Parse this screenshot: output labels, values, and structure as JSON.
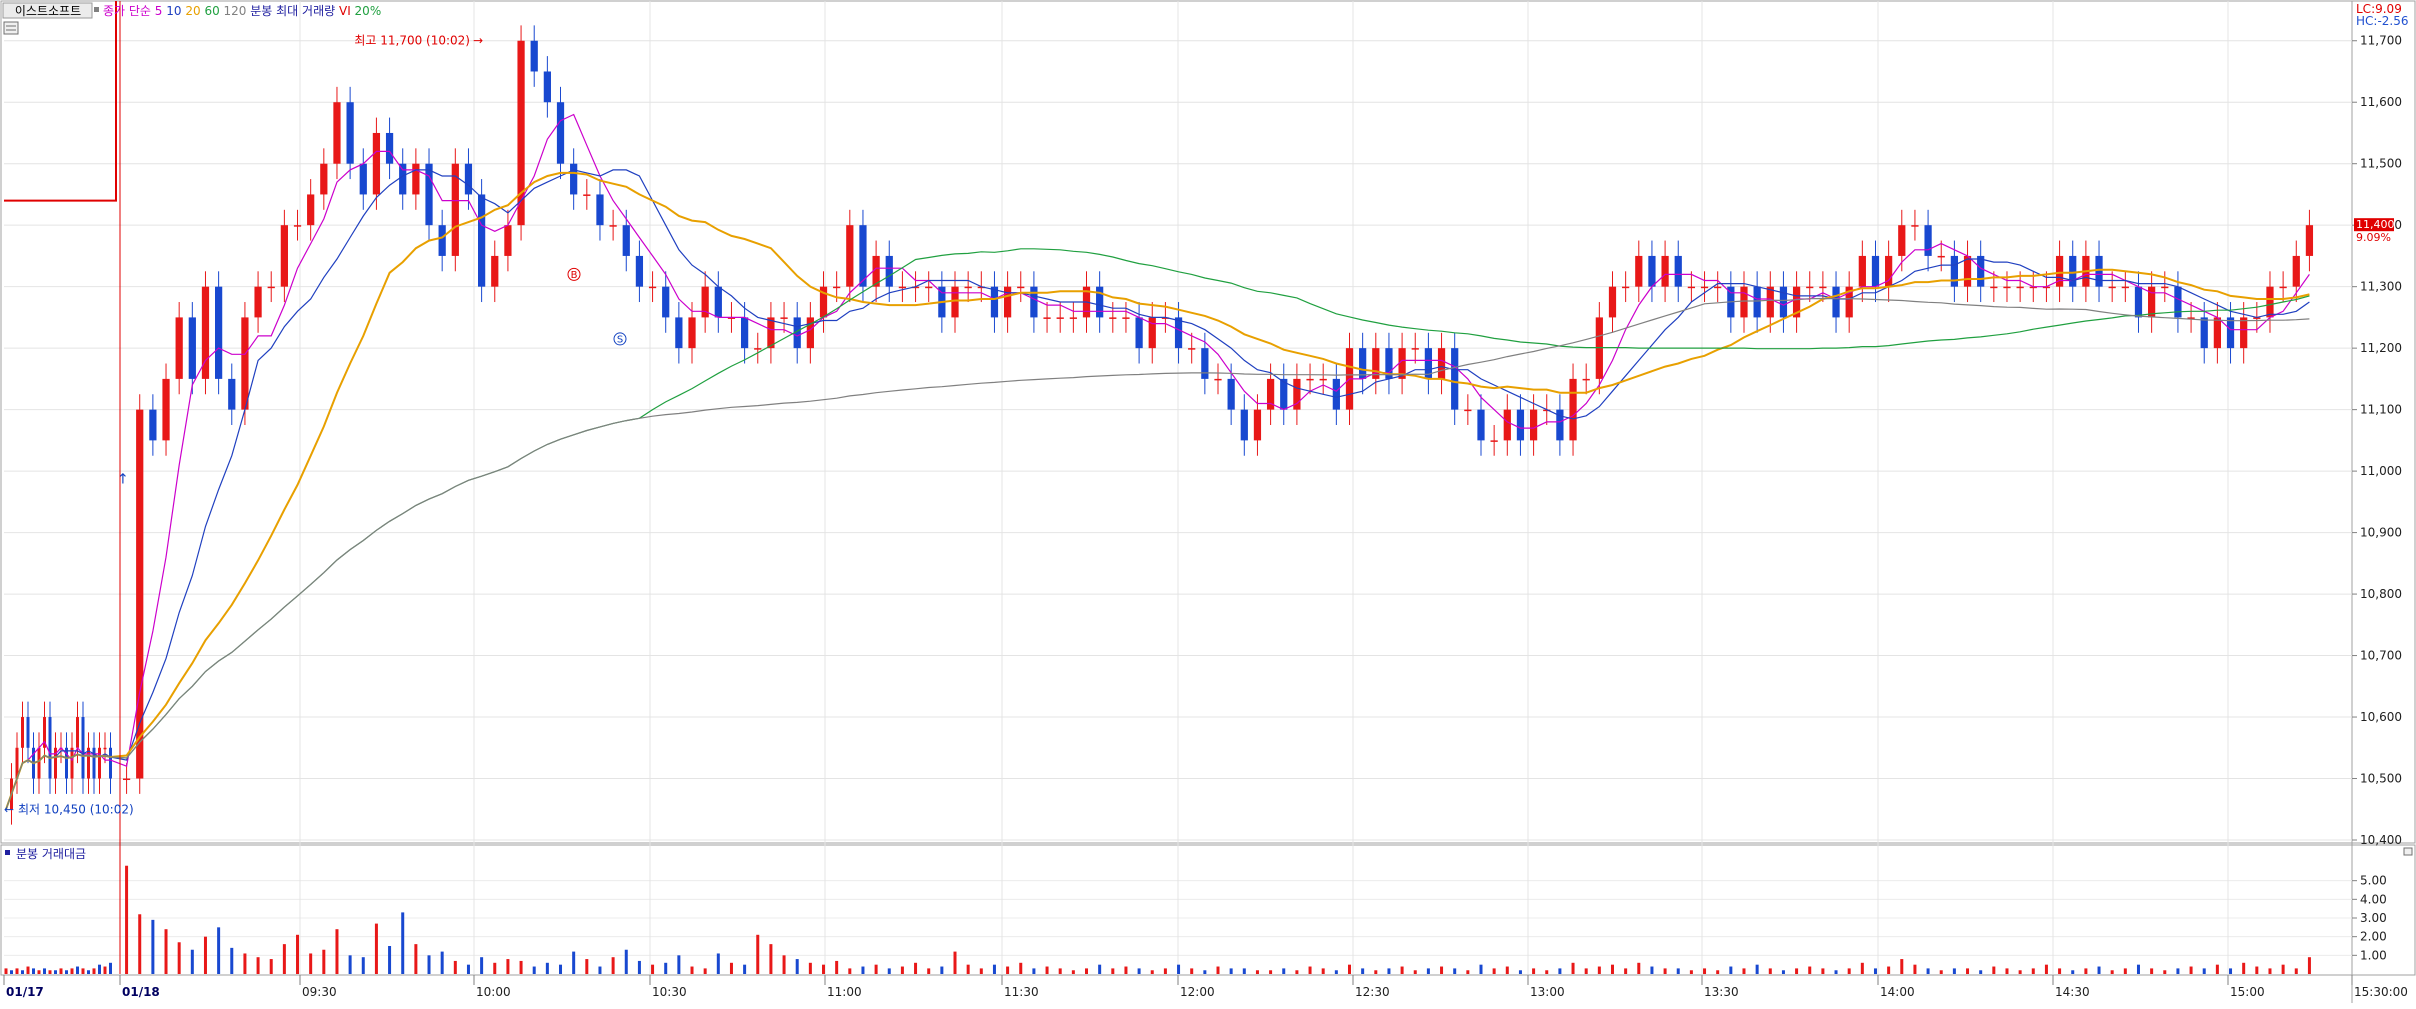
{
  "header": {
    "company": "이스트소프트",
    "legend": [
      {
        "text": "종가 단순",
        "color": "#cc00cc"
      },
      {
        "text": "5",
        "color": "#cc00cc"
      },
      {
        "text": "10",
        "color": "#2040c0"
      },
      {
        "text": "20",
        "color": "#e8a000"
      },
      {
        "text": "60",
        "color": "#20a040"
      },
      {
        "text": "120",
        "color": "#808080"
      },
      {
        "text": "분봉 최대 거래량",
        "color": "#2020a0"
      },
      {
        "text": "VI",
        "color": "#e00000"
      },
      {
        "text": "20%",
        "color": "#20a040"
      }
    ],
    "lc_label": "LC:9.09",
    "hc_label": "HC:-2.56"
  },
  "price_box": {
    "price": "11,400",
    "pct": "9.09%"
  },
  "annotations": {
    "high": "최고 11,700 (10:02)",
    "low": "최저 10,450 (10:02)",
    "marker_b": "B",
    "marker_s": "S"
  },
  "volume_panel": {
    "title": "분봉 거래대금"
  },
  "chart_data": {
    "type": "candlestick",
    "price_axis": {
      "ticks": [
        "10,400",
        "10,500",
        "10,600",
        "10,700",
        "10,800",
        "10,900",
        "11,000",
        "11,100",
        "11,200",
        "11,300",
        "11,400",
        "11,500",
        "11,600",
        "11,700"
      ],
      "ylim": [
        10400,
        11750
      ]
    },
    "volume_axis": {
      "ticks": [
        "1.00",
        "2.00",
        "3.00",
        "4.00",
        "5.00"
      ],
      "ylim": [
        0,
        6
      ]
    },
    "x_labels": [
      "01/17",
      "01/18",
      "09:30",
      "10:00",
      "10:30",
      "11:00",
      "11:30",
      "12:00",
      "12:30",
      "13:00",
      "13:30",
      "14:00",
      "14:30",
      "15:00",
      "15:30:00"
    ],
    "series": [
      {
        "name": "5",
        "color": "#cc00cc"
      },
      {
        "name": "10",
        "color": "#2040c0"
      },
      {
        "name": "20",
        "color": "#e8a000"
      },
      {
        "name": "60",
        "color": "#20a040"
      },
      {
        "name": "120",
        "color": "#808080"
      }
    ],
    "vi_level": 11440,
    "current_price": 11400,
    "high": {
      "value": 11700,
      "time": "10:02"
    },
    "low": {
      "value": 10450,
      "time": "10:02"
    },
    "prev_day_closes": [
      10450,
      10500,
      10550,
      10600,
      10550,
      10500,
      10550,
      10600,
      10500,
      10550,
      10550,
      10500,
      10550,
      10600,
      10500,
      10550,
      10500,
      10550,
      10550,
      10500
    ],
    "closes": [
      10500,
      11100,
      11050,
      11150,
      11250,
      11150,
      11300,
      11150,
      11100,
      11250,
      11300,
      11300,
      11400,
      11400,
      11450,
      11500,
      11600,
      11500,
      11450,
      11550,
      11500,
      11450,
      11500,
      11400,
      11350,
      11500,
      11450,
      11300,
      11350,
      11400,
      11700,
      11650,
      11600,
      11500,
      11450,
      11450,
      11400,
      11400,
      11350,
      11300,
      11300,
      11250,
      11200,
      11250,
      11300,
      11250,
      11250,
      11200,
      11200,
      11250,
      11250,
      11200,
      11250,
      11300,
      11300,
      11400,
      11300,
      11350,
      11300,
      11300,
      11300,
      11300,
      11250,
      11300,
      11300,
      11300,
      11250,
      11300,
      11300,
      11250,
      11250,
      11250,
      11250,
      11300,
      11250,
      11250,
      11250,
      11200,
      11250,
      11250,
      11200,
      11200,
      11150,
      11150,
      11100,
      11050,
      11100,
      11150,
      11100,
      11150,
      11150,
      11150,
      11100,
      11200,
      11150,
      11200,
      11150,
      11200,
      11200,
      11150,
      11200,
      11100,
      11100,
      11050,
      11050,
      11100,
      11050,
      11100,
      11100,
      11050,
      11150,
      11150,
      11250,
      11300,
      11300,
      11350,
      11300,
      11350,
      11300,
      11300,
      11300,
      11300,
      11250,
      11300,
      11250,
      11300,
      11250,
      11300,
      11300,
      11300,
      11250,
      11300,
      11350,
      11300,
      11350,
      11400,
      11400,
      11350,
      11350,
      11300,
      11350,
      11300,
      11300,
      11300,
      11300,
      11300,
      11300,
      11350,
      11300,
      11350,
      11300,
      11300,
      11300,
      11250,
      11300,
      11300,
      11250,
      11250,
      11200,
      11250,
      11200,
      11250,
      11250,
      11300,
      11300,
      11350,
      11400
    ],
    "volumes": [
      5.8,
      3.2,
      2.9,
      2.4,
      1.7,
      1.3,
      2.0,
      2.5,
      1.4,
      1.1,
      0.9,
      0.8,
      1.6,
      2.1,
      1.1,
      1.3,
      2.4,
      1.0,
      0.9,
      2.7,
      1.5,
      3.3,
      1.6,
      1.0,
      1.2,
      0.7,
      0.5,
      0.9,
      0.6,
      0.8,
      0.7,
      0.4,
      0.6,
      0.5,
      1.2,
      0.8,
      0.4,
      0.9,
      1.3,
      0.7,
      0.5,
      0.6,
      1.0,
      0.4,
      0.3,
      1.1,
      0.6,
      0.5,
      2.1,
      1.6,
      1.0,
      0.8,
      0.6,
      0.5,
      0.7,
      0.3,
      0.4,
      0.5,
      0.3,
      0.4,
      0.6,
      0.3,
      0.4,
      1.2,
      0.5,
      0.3,
      0.5,
      0.4,
      0.6,
      0.3,
      0.4,
      0.3,
      0.2,
      0.3,
      0.5,
      0.3,
      0.4,
      0.3,
      0.2,
      0.3,
      0.5,
      0.3,
      0.2,
      0.4,
      0.3,
      0.3,
      0.2,
      0.2,
      0.3,
      0.2,
      0.4,
      0.3,
      0.2,
      0.5,
      0.3,
      0.2,
      0.3,
      0.4,
      0.2,
      0.3,
      0.4,
      0.3,
      0.2,
      0.5,
      0.3,
      0.4,
      0.2,
      0.3,
      0.2,
      0.3,
      0.6,
      0.3,
      0.4,
      0.5,
      0.3,
      0.6,
      0.4,
      0.3,
      0.3,
      0.2,
      0.3,
      0.2,
      0.4,
      0.3,
      0.5,
      0.3,
      0.2,
      0.3,
      0.4,
      0.3,
      0.2,
      0.3,
      0.6,
      0.3,
      0.4,
      0.8,
      0.5,
      0.3,
      0.2,
      0.3,
      0.3,
      0.2,
      0.4,
      0.3,
      0.2,
      0.3,
      0.5,
      0.3,
      0.2,
      0.3,
      0.4,
      0.2,
      0.3,
      0.5,
      0.3,
      0.2,
      0.3,
      0.4,
      0.3,
      0.5,
      0.3,
      0.6,
      0.4,
      0.3,
      0.5,
      0.3,
      0.9
    ],
    "prev_volumes": [
      0.3,
      0.2,
      0.3,
      0.2,
      0.4,
      0.3,
      0.2,
      0.3,
      0.2,
      0.2,
      0.3,
      0.2,
      0.3,
      0.4,
      0.3,
      0.2,
      0.3,
      0.5,
      0.4,
      0.6
    ]
  }
}
